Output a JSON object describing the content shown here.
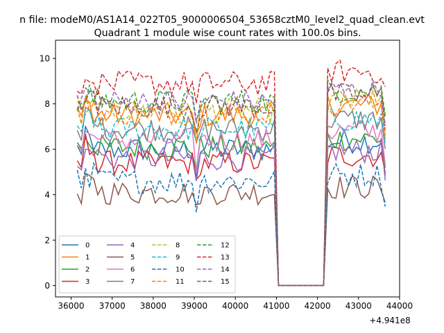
{
  "figure": {
    "suptitle": "n file: modeM0/AS1A14_022T05_9000006504_53658cztM0_level2_quad_clean.evt",
    "title": "Quadrant 1 module wise count rates with 100.0s bins.",
    "offset_label": "+4.941e8"
  },
  "chart_data": {
    "type": "line",
    "title": "Quadrant 1 module wise count rates with 100.0s bins.",
    "xlabel": "",
    "ylabel": "",
    "x_offset": 494100000,
    "xlim": [
      35620,
      44000
    ],
    "ylim": [
      -0.5,
      10.8
    ],
    "xticks": [
      36000,
      37000,
      38000,
      39000,
      40000,
      41000,
      42000,
      43000,
      44000
    ],
    "xtick_labels": [
      "36000",
      "37000",
      "38000",
      "39000",
      "40000",
      "41000",
      "42000",
      "43000",
      "44000"
    ],
    "yticks": [
      0,
      2,
      4,
      6,
      8,
      10
    ],
    "ytick_labels": [
      "0",
      "2",
      "4",
      "6",
      "8",
      "10"
    ],
    "grid": false,
    "legend_position": "lower-left",
    "legend_columns": 4,
    "data_range": {
      "x_start": 36150,
      "x_end": 43650,
      "bin": 100
    },
    "segments": [
      {
        "x_start": 36150,
        "x_end": 40950
      },
      {
        "x_start": 41050,
        "x_end": 42150,
        "zero": true
      },
      {
        "x_start": 42250,
        "x_end": 43650
      }
    ],
    "series": [
      {
        "name": "0",
        "color": "#1f77b4",
        "style": "solid",
        "level": 6.0
      },
      {
        "name": "1",
        "color": "#ff7f0e",
        "style": "solid",
        "level": 7.5
      },
      {
        "name": "2",
        "color": "#2ca02c",
        "style": "solid",
        "level": 6.1
      },
      {
        "name": "3",
        "color": "#d62728",
        "style": "solid",
        "level": 5.4
      },
      {
        "name": "4",
        "color": "#9467bd",
        "style": "solid",
        "level": 5.6
      },
      {
        "name": "5",
        "color": "#8c564b",
        "style": "solid",
        "level": 4.1
      },
      {
        "name": "6",
        "color": "#e377c2",
        "style": "solid",
        "level": 6.4
      },
      {
        "name": "7",
        "color": "#7f7f7f",
        "style": "solid",
        "level": 6.9
      },
      {
        "name": "8",
        "color": "#bcbd22",
        "style": "dashed",
        "level": 7.7
      },
      {
        "name": "9",
        "color": "#17becf",
        "style": "dashed",
        "level": 6.9
      },
      {
        "name": "10",
        "color": "#1f77b4",
        "style": "dashed",
        "level": 4.6
      },
      {
        "name": "11",
        "color": "#ff7f0e",
        "style": "dashed",
        "level": 7.6
      },
      {
        "name": "12",
        "color": "#2ca02c",
        "style": "dashed",
        "level": 8.1
      },
      {
        "name": "13",
        "color": "#d62728",
        "style": "dashed",
        "level": 8.9
      },
      {
        "name": "14",
        "color": "#9467bd",
        "style": "dashed",
        "level": 8.1
      },
      {
        "name": "15",
        "color": "#8c564b",
        "style": "dashed",
        "level": 7.9
      }
    ]
  }
}
